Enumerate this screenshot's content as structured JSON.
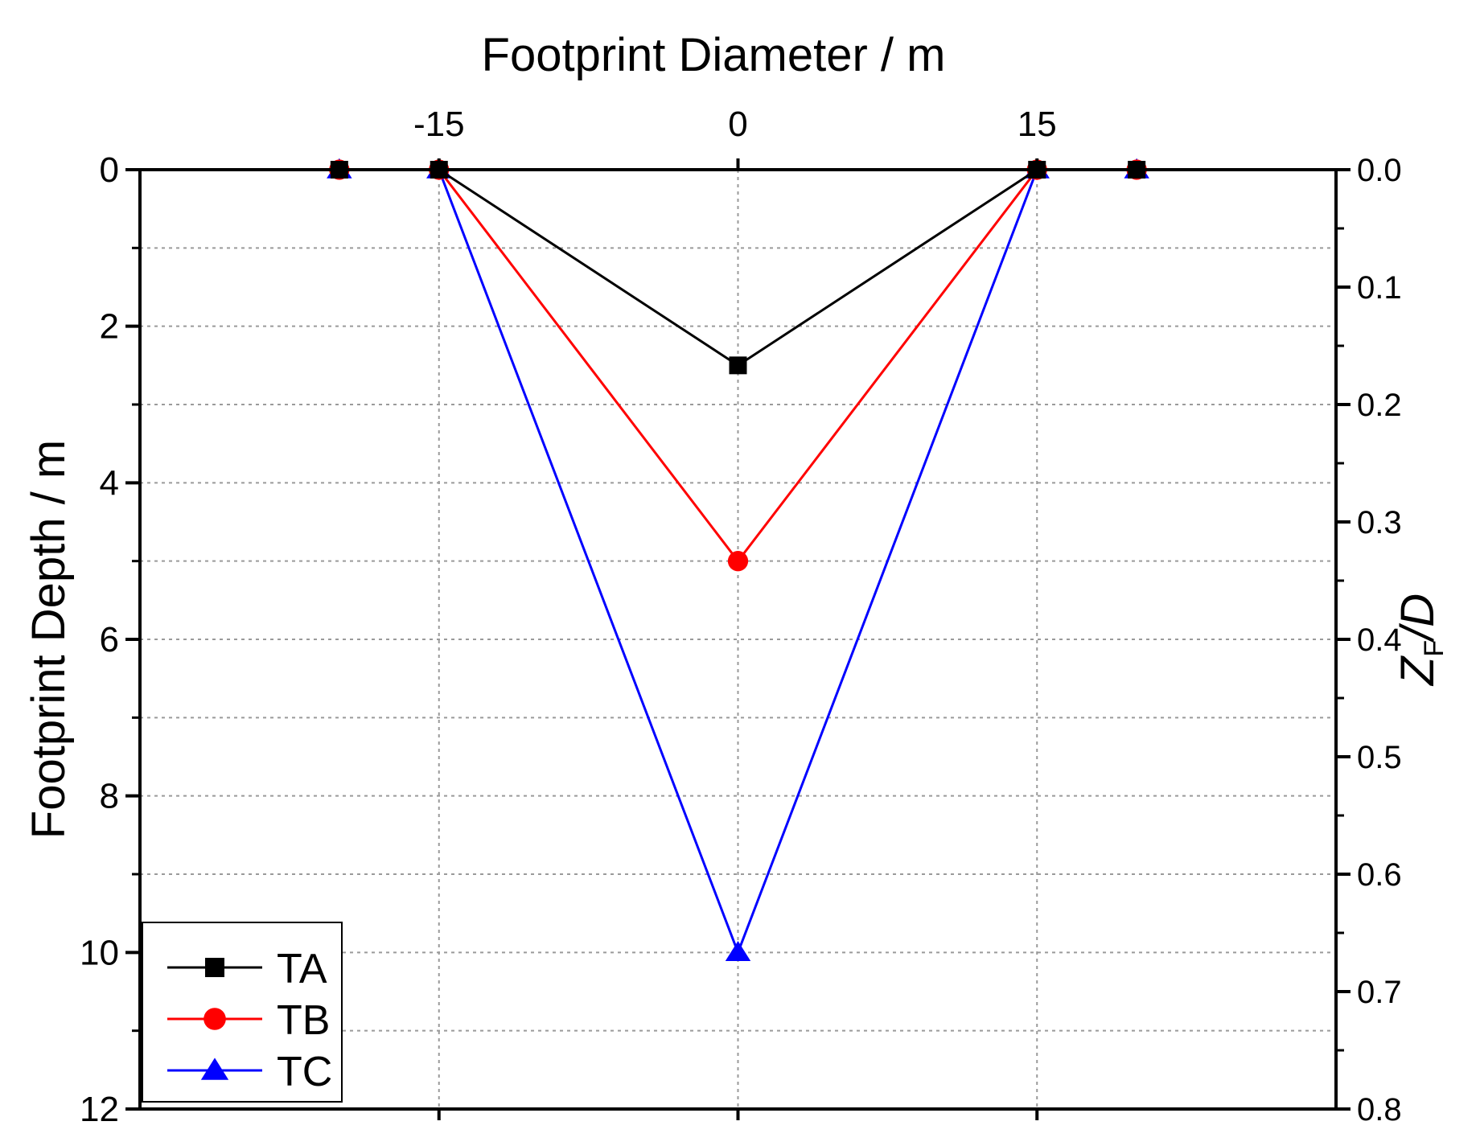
{
  "chart_data": {
    "type": "line",
    "x_axis_top": {
      "label": "Footprint Diameter / m",
      "range": [
        -30,
        30
      ],
      "ticks": [
        -15,
        0,
        15
      ],
      "tick_labels": [
        "-15",
        "0",
        "15"
      ],
      "grid": true
    },
    "y_axis_left": {
      "label": "Footprint Depth / m",
      "range": [
        0,
        12
      ],
      "inverted": true,
      "major_ticks": [
        0,
        2,
        4,
        6,
        8,
        10,
        12
      ],
      "tick_labels": [
        "0",
        "2",
        "4",
        "6",
        "8",
        "10",
        "12"
      ],
      "minor_ticks": [
        1,
        3,
        5,
        7,
        9,
        11
      ],
      "grid": true
    },
    "y_axis_right": {
      "label_main": "Z",
      "label_sub": "F",
      "label_tail": "/D",
      "range": [
        0,
        0.8
      ],
      "inverted": true,
      "ticks": [
        0,
        0.1,
        0.2,
        0.3,
        0.4,
        0.5,
        0.6,
        0.7,
        0.8
      ],
      "tick_labels": [
        "0.0",
        "0.1",
        "0.2",
        "0.3",
        "0.4",
        "0.5",
        "0.6",
        "0.7",
        "0.8"
      ]
    },
    "series": [
      {
        "name": "TA",
        "color": "#000000",
        "marker": "square",
        "x": [
          -20,
          -15,
          0,
          15,
          20
        ],
        "y": [
          0,
          0,
          2.5,
          0,
          0
        ]
      },
      {
        "name": "TB",
        "color": "#ff0000",
        "marker": "circle",
        "x": [
          -20,
          -15,
          0,
          15,
          20
        ],
        "y": [
          0,
          0,
          5,
          0,
          0
        ]
      },
      {
        "name": "TC",
        "color": "#0000ff",
        "marker": "triangle",
        "x": [
          -20,
          -15,
          0,
          15,
          20
        ],
        "y": [
          0,
          0,
          10,
          0,
          0
        ]
      }
    ],
    "legend": {
      "position": "bottom-left",
      "entries": [
        "TA",
        "TB",
        "TC"
      ]
    }
  }
}
